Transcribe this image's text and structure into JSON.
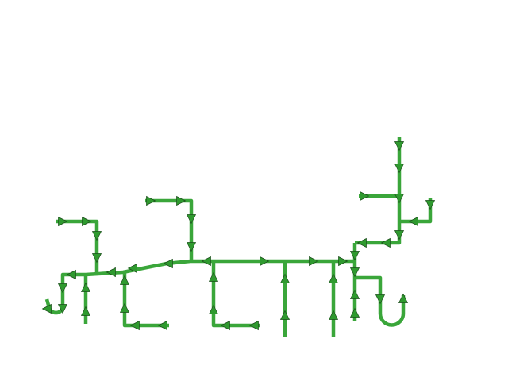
{
  "colors": {
    "line": "#3aa63a",
    "arrow_fill": "#2f9a2f",
    "arrow_stroke": "#1b4d1b",
    "background": "#ffffff"
  },
  "diagram": {
    "kind": "directed-flow-network",
    "arrow_icon": "triangle-arrow-icon",
    "arrow_count": 42
  }
}
